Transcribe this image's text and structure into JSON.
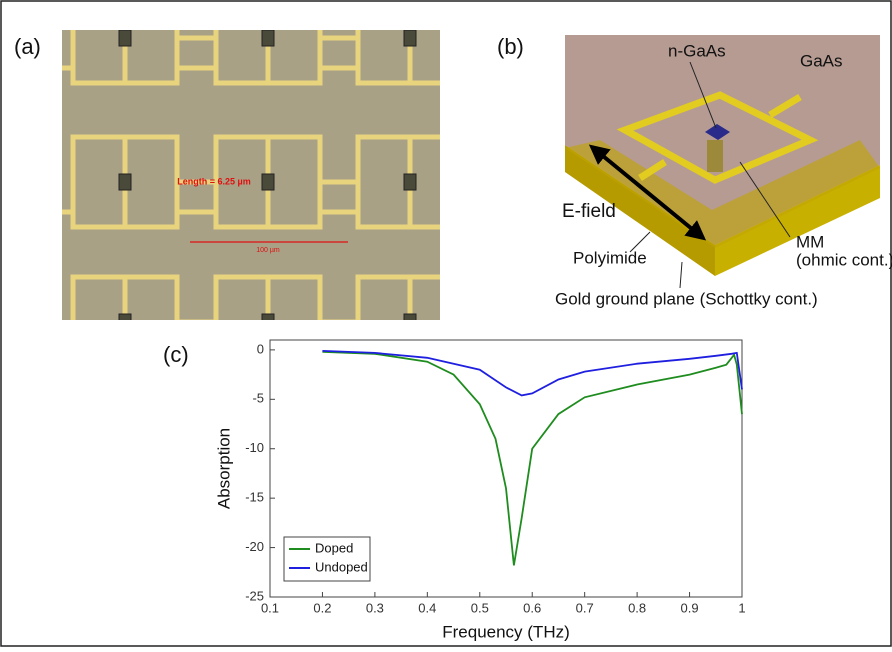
{
  "panel_a": {
    "label": "(a)",
    "length_label": "Length = 6.25 µm",
    "scale_label": "100 µm"
  },
  "panel_b": {
    "label": "(b)",
    "annotations": [
      "n-GaAs",
      "GaAs",
      "E-field",
      "Polyimide",
      "MM",
      "(ohmic cont.)",
      "Gold ground plane (Schottky cont.)"
    ]
  },
  "panel_c": {
    "label": "(c)"
  },
  "chart_data": {
    "type": "line",
    "x_label": "Frequency (THz)",
    "y_label": "Absorption",
    "xlim": [
      0.1,
      1
    ],
    "ylim": [
      -25,
      1
    ],
    "xticks": [
      0.1,
      0.2,
      0.3,
      0.4,
      0.5,
      0.6,
      0.7,
      0.8,
      0.9,
      1
    ],
    "yticks": [
      -25,
      -20,
      -15,
      -10,
      -5,
      0
    ],
    "legend": "lower left",
    "series": [
      {
        "name": "Doped",
        "color": "#1e8c1e",
        "x": [
          0.2,
          0.3,
          0.4,
          0.45,
          0.5,
          0.53,
          0.55,
          0.565,
          0.58,
          0.6,
          0.65,
          0.7,
          0.8,
          0.9,
          0.95,
          0.97,
          0.985,
          0.99,
          1.0
        ],
        "values": [
          -0.2,
          -0.4,
          -1.2,
          -2.5,
          -5.5,
          -9,
          -14,
          -21.8,
          -17,
          -10,
          -6.5,
          -4.8,
          -3.5,
          -2.5,
          -1.8,
          -1.5,
          -0.5,
          -1.5,
          -6.5
        ]
      },
      {
        "name": "Undoped",
        "color": "#1f1fe0",
        "x": [
          0.2,
          0.3,
          0.4,
          0.5,
          0.55,
          0.58,
          0.6,
          0.65,
          0.7,
          0.8,
          0.9,
          0.95,
          0.98,
          0.99,
          1.0
        ],
        "values": [
          -0.1,
          -0.3,
          -0.8,
          -2,
          -3.8,
          -4.6,
          -4.4,
          -3,
          -2.2,
          -1.4,
          -0.9,
          -0.6,
          -0.4,
          -0.3,
          -4
        ]
      }
    ]
  }
}
